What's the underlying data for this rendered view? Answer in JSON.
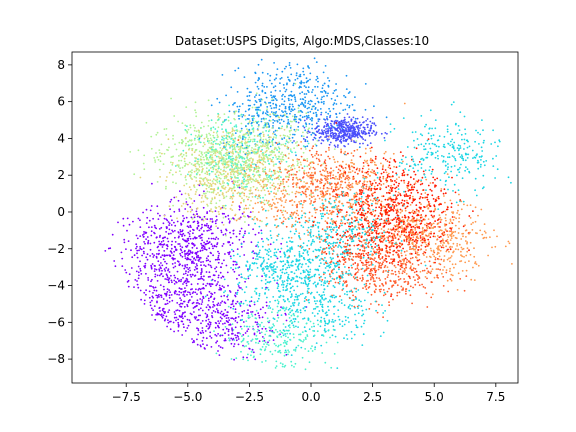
{
  "chart_data": {
    "type": "scatter",
    "title": "Dataset:USPS Digits, Algo:MDS,Classes:10",
    "xlabel": "",
    "ylabel": "",
    "xlim": [
      -9.7,
      8.4
    ],
    "ylim": [
      -9.3,
      8.7
    ],
    "xticks": [
      -7.5,
      -5.0,
      -2.5,
      0.0,
      2.5,
      5.0,
      7.5
    ],
    "xtick_labels": [
      "−7.5",
      "−5.0",
      "−2.5",
      "0.0",
      "2.5",
      "5.0",
      "7.5"
    ],
    "yticks": [
      -8,
      -6,
      -4,
      -2,
      0,
      2,
      4,
      6,
      8
    ],
    "ytick_labels": [
      "−8",
      "−6",
      "−4",
      "−2",
      "0",
      "2",
      "4",
      "6",
      "8"
    ],
    "grid": false,
    "legend": "none",
    "colormap": "rainbow",
    "series": [
      {
        "color": "#8000ff",
        "centers": [
          [
            -4.9,
            -3.2
          ],
          [
            -6.0,
            -1.9
          ],
          [
            -3.5,
            -6.0
          ],
          [
            -5.6,
            -5.4
          ],
          [
            -4.1,
            -1.4
          ]
        ]
      },
      {
        "color": "#4b4ffb",
        "centers": [
          [
            1.3,
            4.4
          ]
        ]
      },
      {
        "color": "#1996f3",
        "centers": [
          [
            -1.6,
            5.4
          ],
          [
            -0.4,
            6.2
          ]
        ]
      },
      {
        "color": "#1cd6e4",
        "centers": [
          [
            -0.2,
            -2.6
          ],
          [
            0.4,
            -5.3
          ],
          [
            -1.4,
            -3.4
          ],
          [
            1.3,
            -1.1
          ],
          [
            5.6,
            3.1
          ]
        ]
      },
      {
        "color": "#4cf2ce",
        "centers": [
          [
            -2.8,
            3.2
          ],
          [
            -1.4,
            -6.8
          ]
        ]
      },
      {
        "color": "#b2f396",
        "centers": [
          [
            -3.1,
            2.2
          ],
          [
            -4.5,
            3.2
          ],
          [
            -1.9,
            3.5
          ]
        ]
      },
      {
        "color": "#e4d67a",
        "centers": [
          [
            -3.7,
            1.6
          ],
          [
            -2.6,
            2.7
          ]
        ]
      },
      {
        "color": "#ff9a50",
        "centers": [
          [
            5.3,
            -1.6
          ],
          [
            4.0,
            -0.8
          ],
          [
            1.8,
            1.4
          ],
          [
            -0.8,
            0.9
          ]
        ]
      },
      {
        "color": "#ff6030",
        "centers": [
          [
            2.2,
            -2.6
          ],
          [
            3.3,
            -3.2
          ],
          [
            0.6,
            1.7
          ]
        ]
      },
      {
        "color": "#ff1a00",
        "centers": [
          [
            3.1,
            1.1
          ],
          [
            3.9,
            -0.3
          ],
          [
            2.6,
            -1.3
          ]
        ]
      }
    ]
  }
}
